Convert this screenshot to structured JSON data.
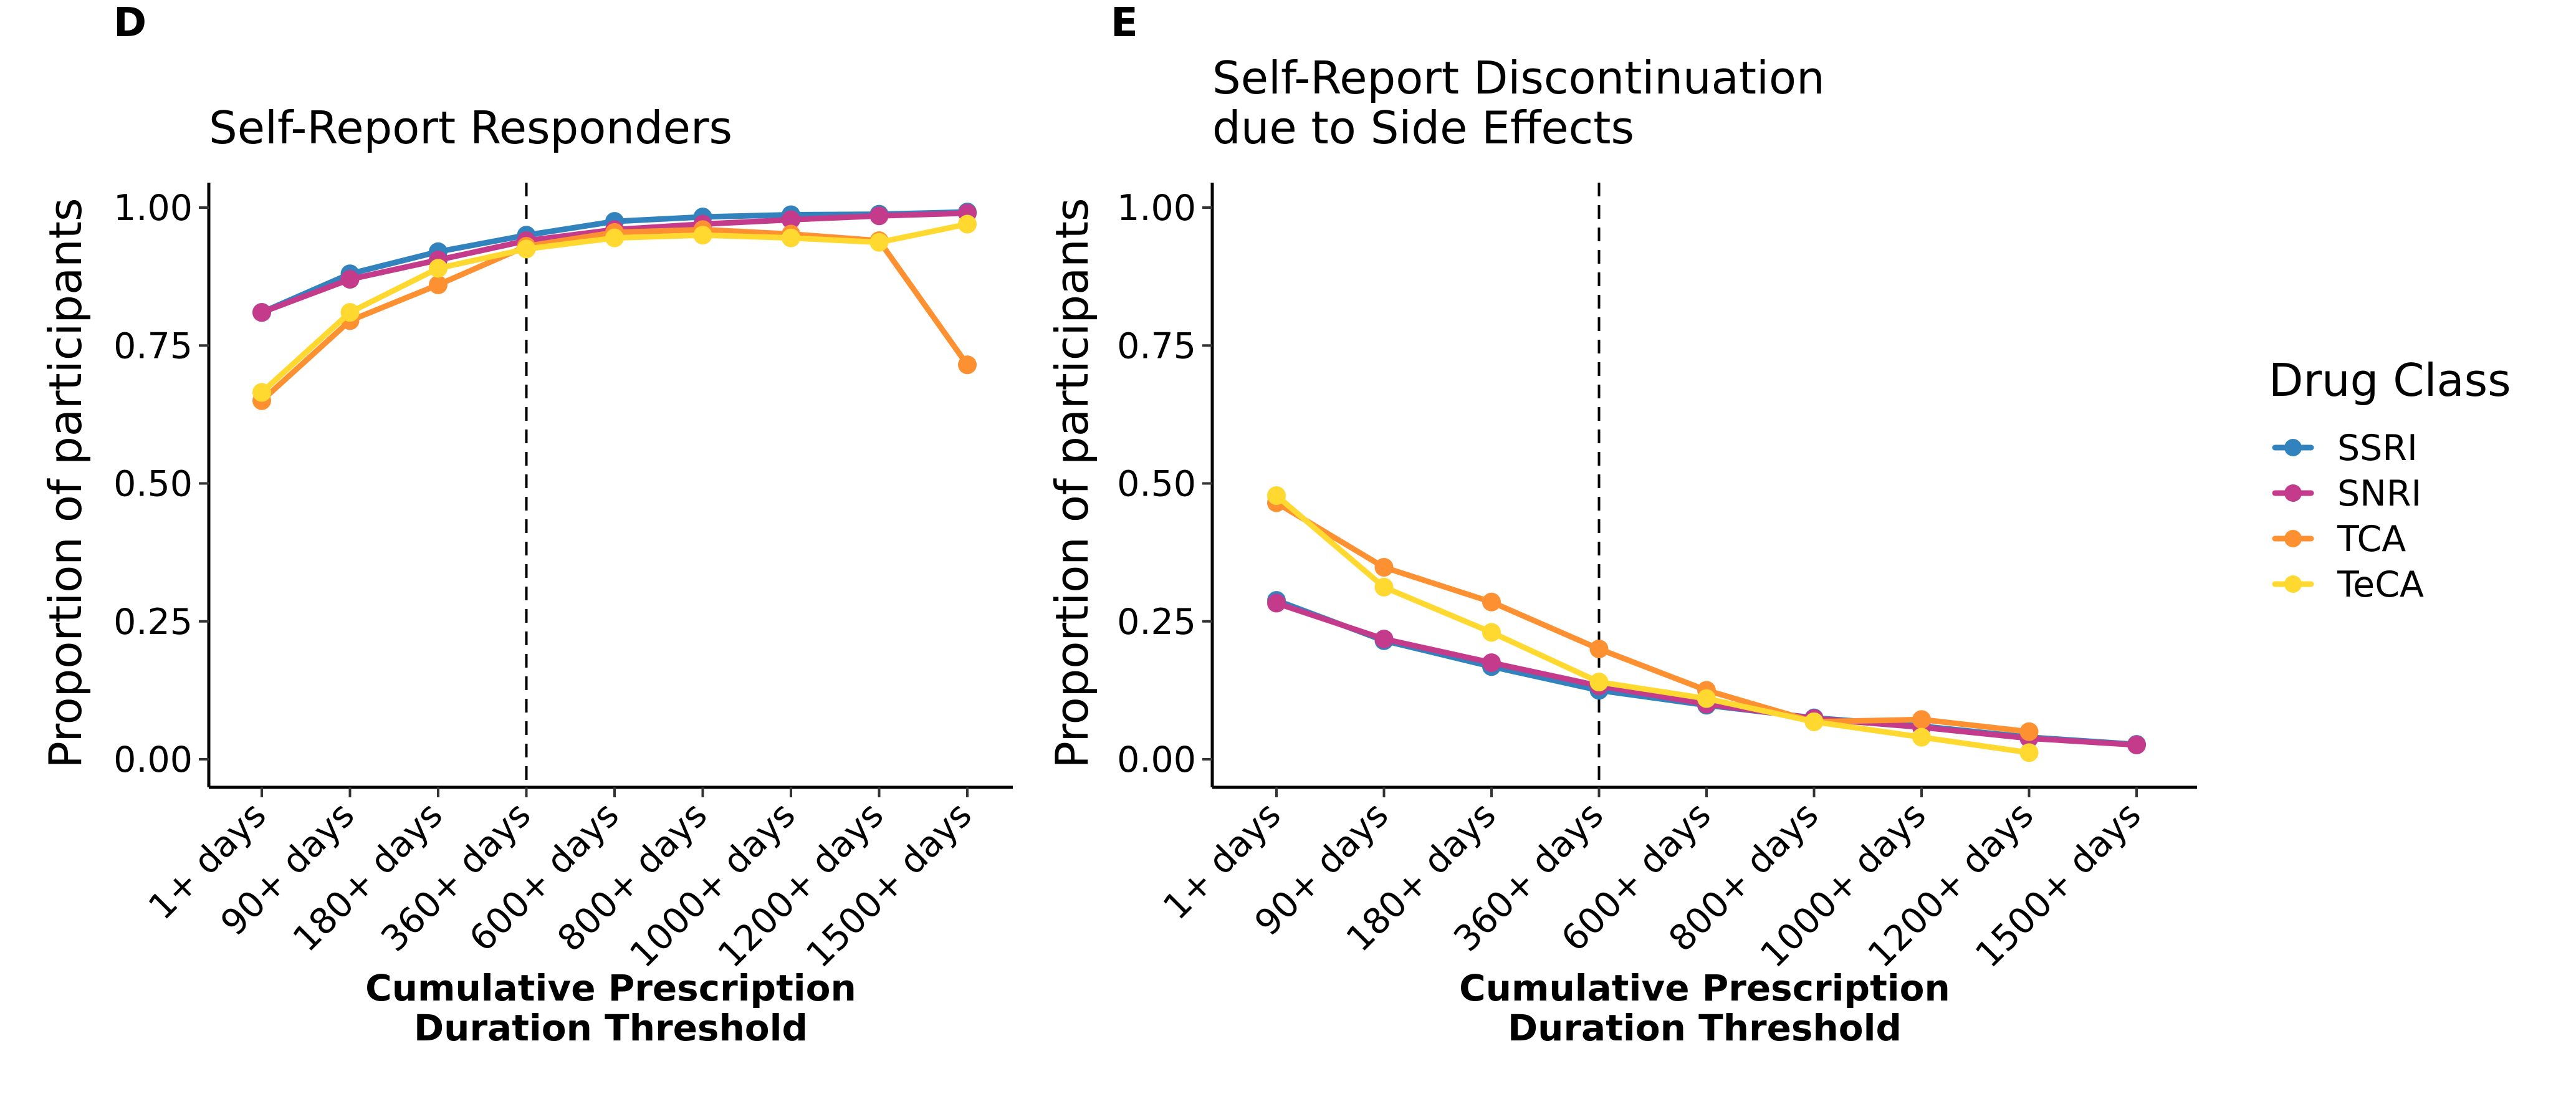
{
  "legend": {
    "title": "Drug Class",
    "entries": [
      {
        "name": "SSRI",
        "color": "#3182bd"
      },
      {
        "name": "SNRI",
        "color": "#c43b8c"
      },
      {
        "name": "TCA",
        "color": "#fd9132"
      },
      {
        "name": "TeCA",
        "color": "#ffd92f"
      }
    ]
  },
  "chart_data": [
    {
      "panel": "D",
      "type": "line",
      "title": "Self-Report Responders",
      "xlabel": "Cumulative Prescription\nDuration Threshold",
      "ylabel": "Proportion of participants",
      "categories": [
        "1+ days",
        "90+ days",
        "180+ days",
        "360+ days",
        "600+ days",
        "800+ days",
        "1000+ days",
        "1200+ days",
        "1500+ days"
      ],
      "ylim": [
        0,
        1
      ],
      "yticks": [
        "0.00",
        "0.25",
        "0.50",
        "0.75",
        "1.00"
      ],
      "vline_category": "360+ days",
      "series": [
        {
          "name": "SSRI",
          "values": [
            0.81,
            0.88,
            0.92,
            0.95,
            0.975,
            0.983,
            0.987,
            0.988,
            0.992
          ]
        },
        {
          "name": "SNRI",
          "values": [
            0.81,
            0.87,
            0.905,
            0.94,
            0.96,
            0.97,
            0.978,
            0.985,
            0.99
          ]
        },
        {
          "name": "TCA",
          "values": [
            0.65,
            0.795,
            0.86,
            0.93,
            0.955,
            0.96,
            0.952,
            0.94,
            0.715
          ]
        },
        {
          "name": "TeCA",
          "values": [
            0.665,
            0.81,
            0.89,
            0.925,
            0.945,
            0.95,
            0.945,
            0.937,
            0.97
          ]
        }
      ]
    },
    {
      "panel": "E",
      "type": "line",
      "title": "Self-Report Discontinuation\ndue to Side Effects",
      "xlabel": "Cumulative Prescription\nDuration Threshold",
      "ylabel": "Proportion of participants",
      "categories": [
        "1+ days",
        "90+ days",
        "180+ days",
        "360+ days",
        "600+ days",
        "800+ days",
        "1000+ days",
        "1200+ days",
        "1500+ days"
      ],
      "ylim": [
        0,
        1
      ],
      "yticks": [
        "0.00",
        "0.25",
        "0.50",
        "0.75",
        "1.00"
      ],
      "vline_category": "360+ days",
      "series": [
        {
          "name": "SSRI",
          "values": [
            0.288,
            0.215,
            0.168,
            0.125,
            0.098,
            0.075,
            0.06,
            0.04,
            0.027
          ]
        },
        {
          "name": "SNRI",
          "values": [
            0.283,
            0.218,
            0.175,
            0.133,
            0.1,
            0.074,
            0.058,
            0.038,
            0.026
          ]
        },
        {
          "name": "TCA",
          "values": [
            0.465,
            0.348,
            0.285,
            0.2,
            0.125,
            0.068,
            0.072,
            0.05,
            null
          ]
        },
        {
          "name": "TeCA",
          "values": [
            0.478,
            0.312,
            0.23,
            0.14,
            0.11,
            0.068,
            0.04,
            0.012,
            null
          ]
        }
      ]
    }
  ]
}
